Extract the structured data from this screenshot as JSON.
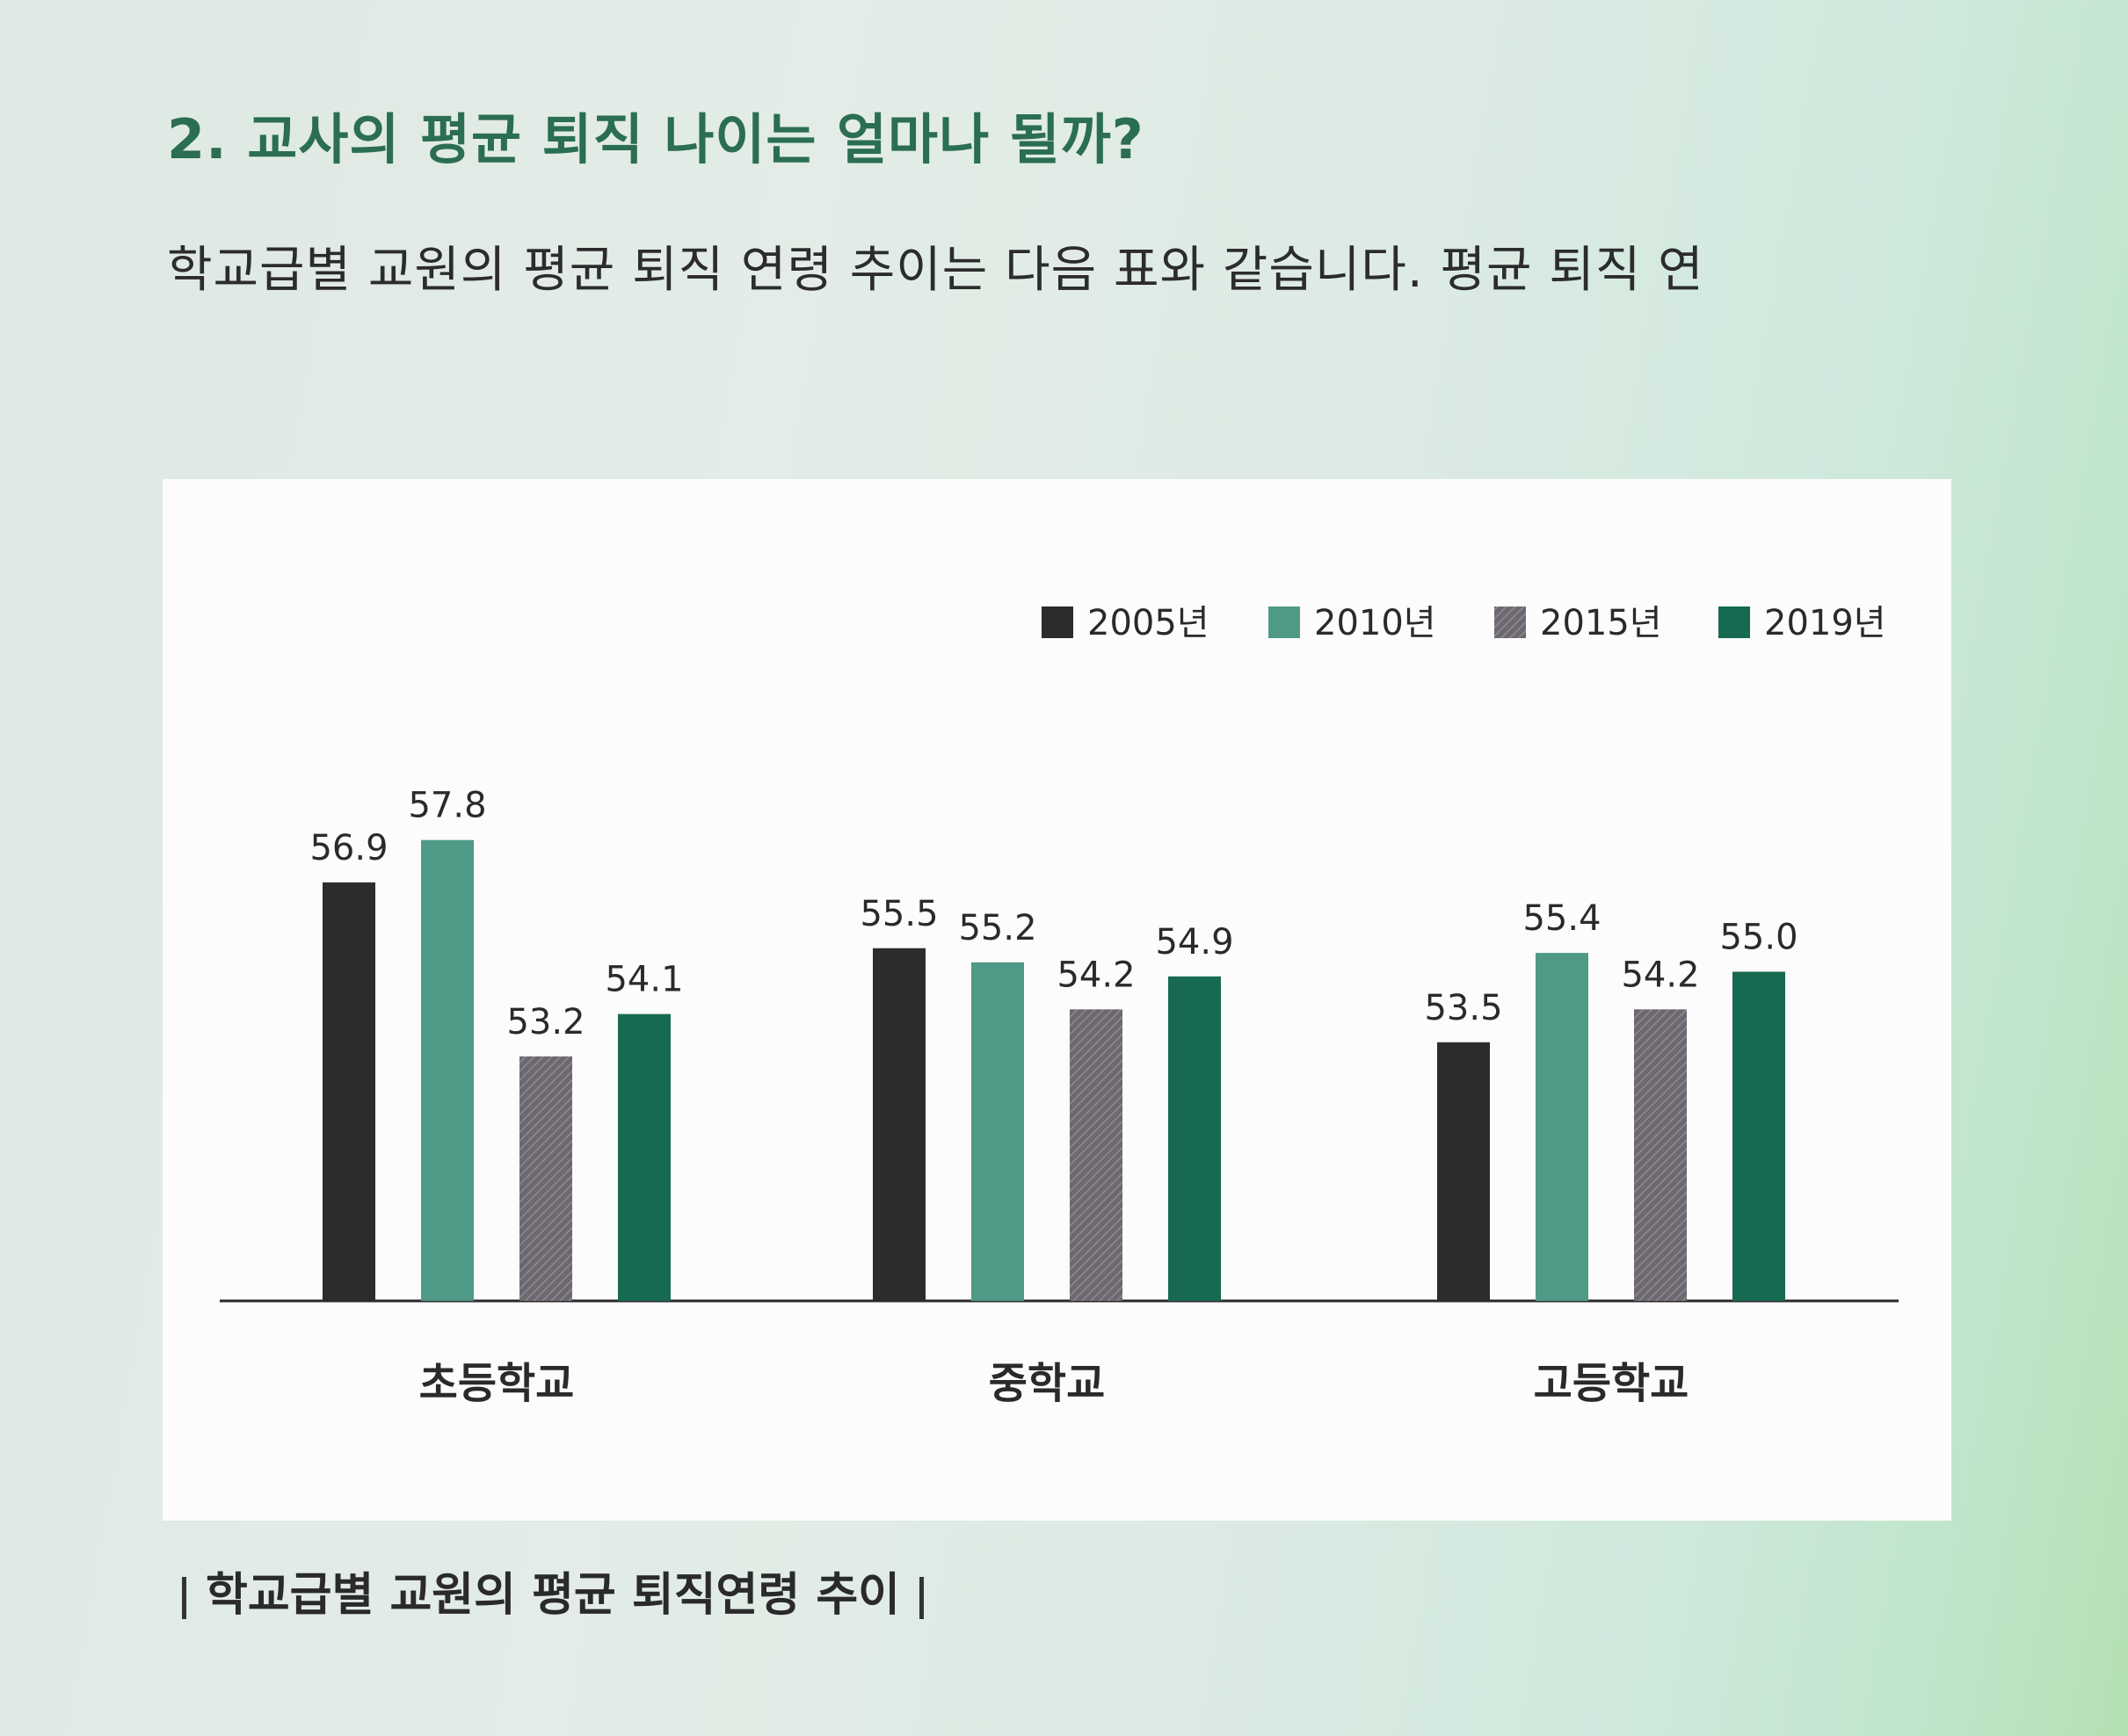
{
  "page": {
    "heading": "2. 교사의 평균 퇴직 나이는 얼마나 될까?",
    "intro": "학교급별 교원의 평균 퇴직 연령 추이는 다음 표와 같습니다. 평균 퇴직 연",
    "caption": "학교급별 교원의 평균 퇴직연령 추이"
  },
  "chart_data": {
    "type": "bar",
    "title": "",
    "xlabel": "",
    "ylabel": "",
    "categories": [
      "초등학교",
      "중학교",
      "고등학교"
    ],
    "series": [
      {
        "name": "2005년",
        "values": [
          56.9,
          55.5,
          53.5
        ],
        "color": "#2d2b2e",
        "pattern": "solid"
      },
      {
        "name": "2010년",
        "values": [
          57.8,
          55.2,
          55.4
        ],
        "color": "#4f9a86",
        "pattern": "solid"
      },
      {
        "name": "2015년",
        "values": [
          53.2,
          54.2,
          54.2
        ],
        "color": "#6d6870",
        "pattern": "hatched"
      },
      {
        "name": "2019년",
        "values": [
          54.1,
          54.9,
          55.0
        ],
        "color": "#176a52",
        "pattern": "solid"
      }
    ],
    "value_labels": [
      [
        "56.9",
        "55.5",
        "53.5"
      ],
      [
        "57.8",
        "55.2",
        "55.4"
      ],
      [
        "53.2",
        "54.2",
        "54.2"
      ],
      [
        "54.1",
        "54.9",
        "55.0"
      ]
    ],
    "legend_position": "top-right",
    "grid": false,
    "y_axis_visible": false
  }
}
